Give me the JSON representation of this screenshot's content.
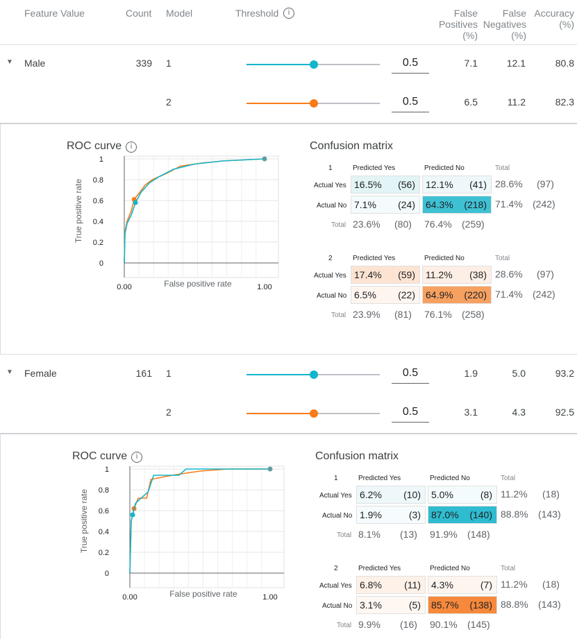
{
  "header": {
    "feature_value": "Feature Value",
    "count": "Count",
    "model": "Model",
    "threshold": "Threshold",
    "fp_l1": "False",
    "fp_l2": "Positives",
    "fp_l3": "(%)",
    "fn_l1": "False",
    "fn_l2": "Negatives",
    "fn_l3": "(%)",
    "acc_l1": "Accuracy",
    "acc_l2": "(%)"
  },
  "colors": {
    "model1": "#12b5cb",
    "model2": "#fa7b17"
  },
  "groups": [
    {
      "name": "Male",
      "count": "339",
      "rows": [
        {
          "model": "1",
          "threshold": "0.5",
          "threshold_value": 0.5,
          "fp": "7.1",
          "fn": "12.1",
          "acc": "80.8"
        },
        {
          "model": "2",
          "threshold": "0.5",
          "threshold_value": 0.5,
          "fp": "6.5",
          "fn": "11.2",
          "acc": "82.3"
        }
      ],
      "roc": {
        "title": "ROC curve",
        "ylabel": "True positive rate",
        "xlabel": "False positive rate",
        "yticks": [
          "1",
          "0.8",
          "0.6",
          "0.4",
          "0.2",
          "0"
        ],
        "xticks": [
          "0.00",
          "1.00"
        ]
      },
      "cm": {
        "title": "Confusion matrix",
        "models": [
          {
            "id": "1",
            "pred_yes": "Predicted Yes",
            "pred_no": "Predicted No",
            "total": "Total",
            "actual_yes": "Actual Yes",
            "actual_no": "Actual No",
            "yy_pct": "16.5%",
            "yy_cnt": "(56)",
            "yn_pct": "12.1%",
            "yn_cnt": "(41)",
            "y_tot_pct": "28.6%",
            "y_tot_cnt": "(97)",
            "ny_pct": "7.1%",
            "ny_cnt": "(24)",
            "nn_pct": "64.3%",
            "nn_cnt": "(218)",
            "n_tot_pct": "71.4%",
            "n_tot_cnt": "(242)",
            "t_y_pct": "23.6%",
            "t_y_cnt": "(80)",
            "t_n_pct": "76.4%",
            "t_n_cnt": "(259)"
          },
          {
            "id": "2",
            "pred_yes": "Predicted Yes",
            "pred_no": "Predicted No",
            "total": "Total",
            "actual_yes": "Actual Yes",
            "actual_no": "Actual No",
            "yy_pct": "17.4%",
            "yy_cnt": "(59)",
            "yn_pct": "11.2%",
            "yn_cnt": "(38)",
            "y_tot_pct": "28.6%",
            "y_tot_cnt": "(97)",
            "ny_pct": "6.5%",
            "ny_cnt": "(22)",
            "nn_pct": "64.9%",
            "nn_cnt": "(220)",
            "n_tot_pct": "71.4%",
            "n_tot_cnt": "(242)",
            "t_y_pct": "23.9%",
            "t_y_cnt": "(81)",
            "t_n_pct": "76.1%",
            "t_n_cnt": "(258)"
          }
        ]
      }
    },
    {
      "name": "Female",
      "count": "161",
      "rows": [
        {
          "model": "1",
          "threshold": "0.5",
          "threshold_value": 0.5,
          "fp": "1.9",
          "fn": "5.0",
          "acc": "93.2"
        },
        {
          "model": "2",
          "threshold": "0.5",
          "threshold_value": 0.5,
          "fp": "3.1",
          "fn": "4.3",
          "acc": "92.5"
        }
      ],
      "roc": {
        "title": "ROC curve",
        "ylabel": "True positive rate",
        "xlabel": "False positive rate",
        "yticks": [
          "1",
          "0.8",
          "0.6",
          "0.4",
          "0.2",
          "0"
        ],
        "xticks": [
          "0.00",
          "1.00"
        ]
      },
      "cm": {
        "title": "Confusion matrix",
        "models": [
          {
            "id": "1",
            "pred_yes": "Predicted Yes",
            "pred_no": "Predicted No",
            "total": "Total",
            "actual_yes": "Actual Yes",
            "actual_no": "Actual No",
            "yy_pct": "6.2%",
            "yy_cnt": "(10)",
            "yn_pct": "5.0%",
            "yn_cnt": "(8)",
            "y_tot_pct": "11.2%",
            "y_tot_cnt": "(18)",
            "ny_pct": "1.9%",
            "ny_cnt": "(3)",
            "nn_pct": "87.0%",
            "nn_cnt": "(140)",
            "n_tot_pct": "88.8%",
            "n_tot_cnt": "(143)",
            "t_y_pct": "8.1%",
            "t_y_cnt": "(13)",
            "t_n_pct": "91.9%",
            "t_n_cnt": "(148)"
          },
          {
            "id": "2",
            "pred_yes": "Predicted Yes",
            "pred_no": "Predicted No",
            "total": "Total",
            "actual_yes": "Actual Yes",
            "actual_no": "Actual No",
            "yy_pct": "6.8%",
            "yy_cnt": "(11)",
            "yn_pct": "4.3%",
            "yn_cnt": "(7)",
            "y_tot_pct": "11.2%",
            "y_tot_cnt": "(18)",
            "ny_pct": "3.1%",
            "ny_cnt": "(5)",
            "nn_pct": "85.7%",
            "nn_cnt": "(138)",
            "n_tot_pct": "88.8%",
            "n_tot_cnt": "(143)",
            "t_y_pct": "9.9%",
            "t_y_cnt": "(16)",
            "t_n_pct": "90.1%",
            "t_n_cnt": "(145)"
          }
        ]
      }
    }
  ]
}
